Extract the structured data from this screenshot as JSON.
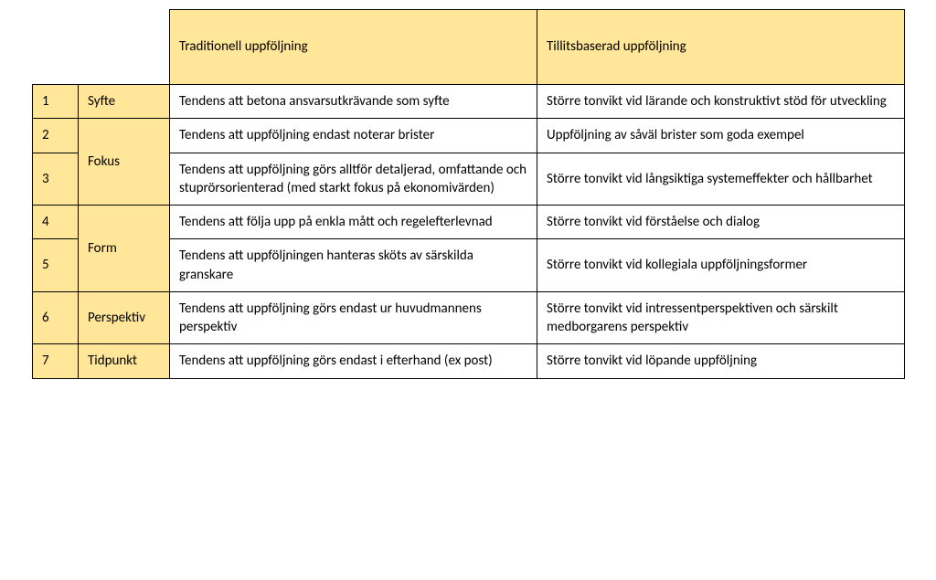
{
  "colors": {
    "header_bg": "#ffe699",
    "cell_bg": "#ffffff",
    "border": "#000000",
    "text": "#000000"
  },
  "typography": {
    "font_family": "Calibri",
    "header_fontsize": 20,
    "body_fontsize": 15
  },
  "columns": {
    "traditional": "Traditionell uppföljning",
    "trust_based": "Tillitsbaserad uppföljning"
  },
  "rows": [
    {
      "num": "1",
      "category": "Syfte",
      "rowspan": 1,
      "traditional": "Tendens att betona ansvarsutkrävande som syfte",
      "trust_based": "Större tonvikt vid lärande och konstruktivt stöd för utveckling"
    },
    {
      "num": "2",
      "category": "Fokus",
      "rowspan": 2,
      "traditional": "Tendens att uppföljning endast noterar brister",
      "trust_based": "Uppföljning av såväl brister som goda exempel"
    },
    {
      "num": "3",
      "traditional": "Tendens att uppföljning görs alltför detaljerad, omfattande och stuprörsorienterad (med starkt fokus på ekonomivärden)",
      "trust_based": "Större tonvikt vid långsiktiga systemeffekter och hållbarhet"
    },
    {
      "num": "4",
      "category": "Form",
      "rowspan": 2,
      "traditional": "Tendens att följa upp på enkla mått och regelefterlevnad",
      "trust_based": "Större tonvikt vid förståelse och dialog"
    },
    {
      "num": "5",
      "traditional": "Tendens att uppföljningen hanteras sköts av särskilda granskare",
      "trust_based": "Större tonvikt vid kollegiala uppföljningsformer"
    },
    {
      "num": "6",
      "category": "Perspektiv",
      "rowspan": 1,
      "traditional": "Tendens att uppföljning görs endast ur huvudmannens perspektiv",
      "trust_based": "Större tonvikt vid intressentperspektiven och särskilt medborgarens perspektiv"
    },
    {
      "num": "7",
      "category": "Tidpunkt",
      "rowspan": 1,
      "traditional": "Tendens att uppföljning görs endast i efterhand (ex post)",
      "trust_based": "Större tonvikt vid löpande uppföljning"
    }
  ]
}
